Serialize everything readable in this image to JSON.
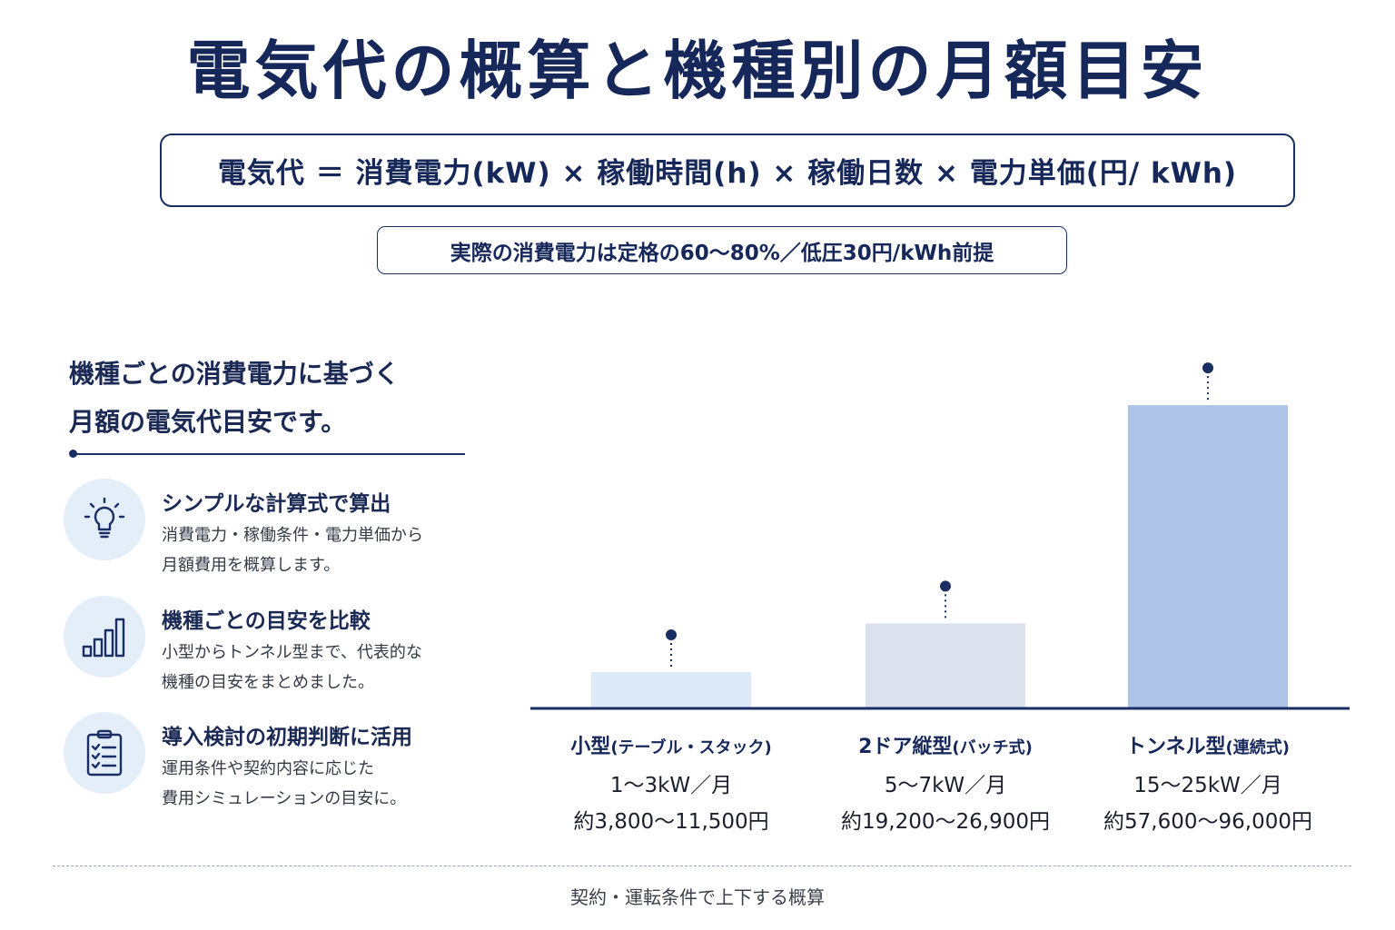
{
  "title": "電気代の概算と機種別の月額目安",
  "formula": "電気代 ＝ 消費電力(kW) × 稼働時間(h) × 稼働日数 × 電力単価(円/ kWh)",
  "note": "実際の消費電力は定格の60〜80%／低圧30円/kWh前提",
  "intro": {
    "line1": "機種ごとの消費電力に基づく",
    "line2": "月額の電気代目安です。"
  },
  "features": [
    {
      "icon": "lightbulb-icon",
      "title": "シンプルな計算式で算出",
      "desc1": "消費電力・稼働条件・電力単価から",
      "desc2": "月額費用を概算します。"
    },
    {
      "icon": "bar-chart-icon",
      "title": "機種ごとの目安を比較",
      "desc1": "小型からトンネル型まで、代表的な",
      "desc2": "機種の目安をまとめました。"
    },
    {
      "icon": "clipboard-checklist-icon",
      "title": "導入検討の初期判断に活用",
      "desc1": "運用条件や契約内容に応じた",
      "desc2": "費用シミュレーションの目安に。"
    }
  ],
  "chart_data": {
    "type": "bar",
    "categories": [
      {
        "name": "小型",
        "sub": "(テーブル・スタック)",
        "kw": "1〜3kW／月",
        "cost": "約3,800〜11,500円"
      },
      {
        "name": "2ドア縦型",
        "sub": "(バッチ式)",
        "kw": "5〜7kW／月",
        "cost": "約19,200〜26,900円"
      },
      {
        "name": "トンネル型",
        "sub": "(連続式)",
        "kw": "15〜25kW／月",
        "cost": "約57,600〜96,000円"
      }
    ],
    "series": [
      {
        "values": [
          11500,
          26900,
          96000
        ]
      }
    ],
    "ylim": [
      0,
      115000
    ],
    "grid": false,
    "colors": [
      "#ddebf8",
      "#dbe2ee",
      "#aec4e6"
    ],
    "axis_color": "#1b2e64",
    "marker_color": "#1b2e64"
  },
  "footer": "契約・運転条件で上下する概算"
}
